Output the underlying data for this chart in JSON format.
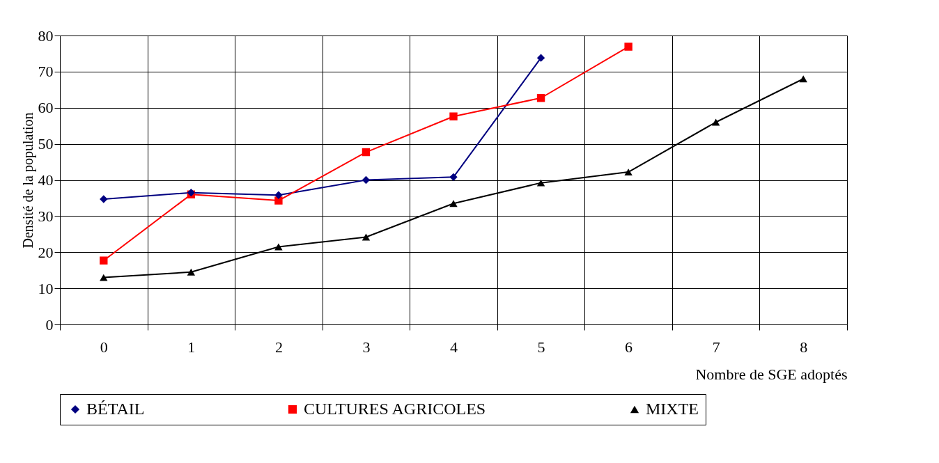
{
  "chart_data": {
    "type": "line",
    "xlabel": "Nombre de SGE adoptés",
    "ylabel": "Densité de la population",
    "categories": [
      "0",
      "1",
      "2",
      "3",
      "4",
      "5",
      "6",
      "7",
      "8"
    ],
    "series": [
      {
        "name": "BÉTAIL",
        "color": "#000080",
        "marker": "diamond",
        "values": [
          34.7,
          36.5,
          35.8,
          40,
          40.8,
          73.8,
          null,
          null,
          null
        ]
      },
      {
        "name": "CULTURES AGRICOLES",
        "color": "#ff0000",
        "marker": "square",
        "values": [
          17.7,
          36,
          34.3,
          47.7,
          57.6,
          62.7,
          76.9,
          null,
          null
        ]
      },
      {
        "name": "MIXTE",
        "color": "#000000",
        "marker": "triangle",
        "values": [
          13,
          14.5,
          21.5,
          24.2,
          33.5,
          39.2,
          42.2,
          56,
          68
        ]
      }
    ],
    "ylim": [
      0,
      80
    ],
    "yticks": [
      0,
      10,
      20,
      30,
      40,
      50,
      60,
      70,
      80
    ],
    "grid": true,
    "legend": "bottom",
    "line_style": "solid"
  }
}
